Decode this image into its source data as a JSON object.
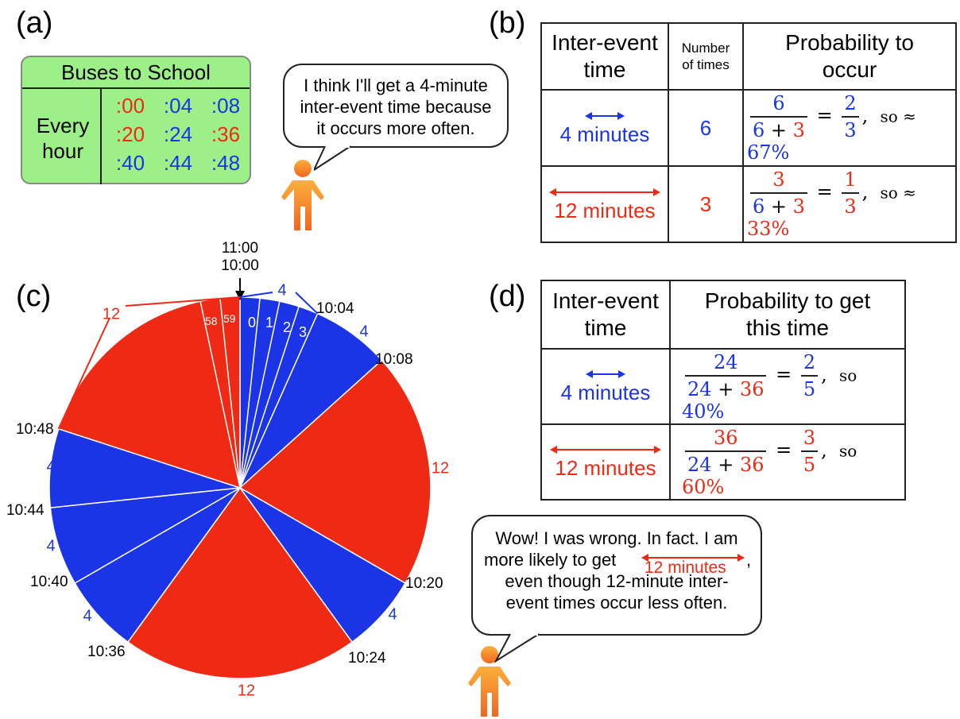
{
  "panel_labels": {
    "a": "(a)",
    "b": "(b)",
    "c": "(c)",
    "d": "(d)"
  },
  "timetable": {
    "title": "Buses to School",
    "row_label_line1": "Every",
    "row_label_line2": "hour",
    "rows": [
      [
        {
          "text": ":00",
          "color": "red"
        },
        {
          "text": ":04",
          "color": "blue"
        },
        {
          "text": ":08",
          "color": "blue"
        }
      ],
      [
        {
          "text": ":20",
          "color": "red"
        },
        {
          "text": ":24",
          "color": "blue"
        },
        {
          "text": ":36",
          "color": "red"
        }
      ],
      [
        {
          "text": ":40",
          "color": "blue"
        },
        {
          "text": ":44",
          "color": "blue"
        },
        {
          "text": ":48",
          "color": "blue"
        }
      ]
    ]
  },
  "bubble1": {
    "line1": "I think I'll get a 4-minute",
    "line2": "inter-event time because",
    "line3": "it occurs more often."
  },
  "bubble2": {
    "line1": "Wow! I was wrong. In fact. I am",
    "line2": "more likely to get",
    "arrow_label": "12 minutes",
    "comma": ",",
    "line3": "even though 12-minute inter-",
    "line4": "event times occur less often."
  },
  "table_b": {
    "headers": {
      "col1_line1": "Inter-event",
      "col1_line2": "time",
      "col2_line1": "Number",
      "col2_line2": "of times",
      "col3_line1": "Probability to",
      "col3_line2": "occur"
    },
    "rows": [
      {
        "label": "4 minutes",
        "count": "6",
        "num": "6",
        "den_a": "6",
        "plus": "+",
        "den_b": "3",
        "eq": "=",
        "rnum": "2",
        "rden": "3",
        "so": "so ≈",
        "pct": "67%"
      },
      {
        "label": "12 minutes",
        "count": "3",
        "num": "3",
        "den_a": "6",
        "plus": "+",
        "den_b": "3",
        "eq": "=",
        "rnum": "1",
        "rden": "3",
        "so": "so ≈",
        "pct": "33%"
      }
    ]
  },
  "table_d": {
    "headers": {
      "col1_line1": "Inter-event",
      "col1_line2": "time",
      "col2_line1": "Probability to get",
      "col2_line2": "this time"
    },
    "rows": [
      {
        "label": "4 minutes",
        "num": "24",
        "den_a": "24",
        "plus": "+",
        "den_b": "36",
        "eq": "=",
        "rnum": "2",
        "rden": "5",
        "so": "so",
        "pct": "40%"
      },
      {
        "label": "12 minutes",
        "num": "36",
        "den_a": "24",
        "plus": "+",
        "den_b": "36",
        "eq": "=",
        "rnum": "3",
        "rden": "5",
        "so": "so",
        "pct": "60%"
      }
    ]
  },
  "clock": {
    "top_label_line1": "11:00",
    "top_label_line2": "10:00",
    "minute_ticks": [
      "0",
      "1",
      "2",
      "3",
      "58",
      "59"
    ],
    "times": [
      "10:04",
      "10:08",
      "10:20",
      "10:24",
      "10:36",
      "10:40",
      "10:44",
      "10:48"
    ],
    "segments": [
      {
        "start_min": 0,
        "end_min": 4,
        "label": "4",
        "color": "blue"
      },
      {
        "start_min": 4,
        "end_min": 8,
        "label": "4",
        "color": "blue"
      },
      {
        "start_min": 8,
        "end_min": 20,
        "label": "12",
        "color": "red"
      },
      {
        "start_min": 20,
        "end_min": 24,
        "label": "4",
        "color": "blue"
      },
      {
        "start_min": 24,
        "end_min": 36,
        "label": "12",
        "color": "red"
      },
      {
        "start_min": 36,
        "end_min": 40,
        "label": "4",
        "color": "blue"
      },
      {
        "start_min": 40,
        "end_min": 44,
        "label": "4",
        "color": "blue"
      },
      {
        "start_min": 44,
        "end_min": 48,
        "label": "4",
        "color": "blue"
      },
      {
        "start_min": 48,
        "end_min": 60,
        "label": "12",
        "color": "red"
      }
    ]
  },
  "colors": {
    "blue": "#1a34e6",
    "red": "#ee2a15",
    "timetable_bg": "#9cf087",
    "person": "#f7941d"
  }
}
